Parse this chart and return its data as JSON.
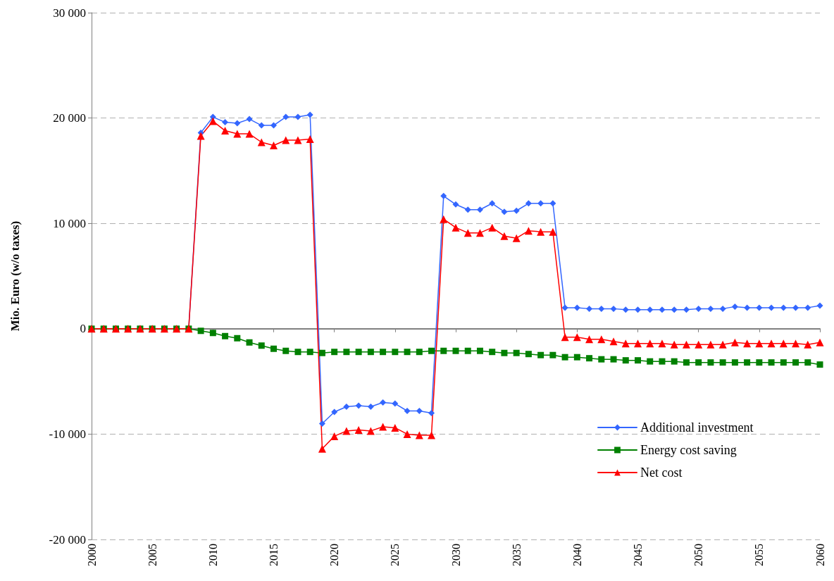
{
  "chart_data": {
    "type": "line",
    "ylabel": "Mio. Euro (w/o taxes)",
    "x": [
      2000,
      2001,
      2002,
      2003,
      2004,
      2005,
      2006,
      2007,
      2008,
      2009,
      2010,
      2011,
      2012,
      2013,
      2014,
      2015,
      2016,
      2017,
      2018,
      2019,
      2020,
      2021,
      2022,
      2023,
      2024,
      2025,
      2026,
      2027,
      2028,
      2029,
      2030,
      2031,
      2032,
      2033,
      2034,
      2035,
      2036,
      2037,
      2038,
      2039,
      2040,
      2041,
      2042,
      2043,
      2044,
      2045,
      2046,
      2047,
      2048,
      2049,
      2050,
      2051,
      2052,
      2053,
      2054,
      2055,
      2056,
      2057,
      2058,
      2059,
      2060
    ],
    "series": [
      {
        "name": "Additional investment",
        "color": "#3366ff",
        "marker": "diamond",
        "values": [
          null,
          null,
          null,
          null,
          null,
          null,
          null,
          null,
          0,
          18600,
          20100,
          19600,
          19500,
          19900,
          19300,
          19300,
          20100,
          20100,
          20300,
          -9000,
          -7900,
          -7400,
          -7300,
          -7400,
          -7000,
          -7100,
          -7800,
          -7800,
          -8000,
          12600,
          11800,
          11300,
          11300,
          11900,
          11100,
          11200,
          11900,
          11900,
          11900,
          2000,
          2000,
          1900,
          1900,
          1900,
          1800,
          1800,
          1800,
          1800,
          1800,
          1800,
          1900,
          1900,
          1900,
          2100,
          2000,
          2000,
          2000,
          2000,
          2000,
          2000,
          2200
        ]
      },
      {
        "name": "Energy cost saving",
        "color": "#008000",
        "marker": "square",
        "values": [
          0,
          0,
          0,
          0,
          0,
          0,
          0,
          0,
          0,
          -200,
          -400,
          -700,
          -900,
          -1300,
          -1600,
          -1900,
          -2100,
          -2200,
          -2200,
          -2300,
          -2200,
          -2200,
          -2200,
          -2200,
          -2200,
          -2200,
          -2200,
          -2200,
          -2100,
          -2100,
          -2100,
          -2100,
          -2100,
          -2200,
          -2300,
          -2300,
          -2400,
          -2500,
          -2500,
          -2700,
          -2700,
          -2800,
          -2900,
          -2900,
          -3000,
          -3000,
          -3100,
          -3100,
          -3100,
          -3200,
          -3200,
          -3200,
          -3200,
          -3200,
          -3200,
          -3200,
          -3200,
          -3200,
          -3200,
          -3200,
          -3400
        ]
      },
      {
        "name": "Net cost",
        "color": "#ff0000",
        "marker": "triangle",
        "values": [
          0,
          0,
          0,
          0,
          0,
          0,
          0,
          0,
          0,
          18300,
          19700,
          18800,
          18500,
          18500,
          17700,
          17400,
          17900,
          17900,
          18000,
          -11400,
          -10200,
          -9700,
          -9600,
          -9700,
          -9300,
          -9400,
          -10000,
          -10100,
          -10100,
          10400,
          9600,
          9100,
          9100,
          9600,
          8800,
          8600,
          9300,
          9200,
          9200,
          -800,
          -800,
          -1000,
          -1000,
          -1200,
          -1400,
          -1400,
          -1400,
          -1400,
          -1500,
          -1500,
          -1500,
          -1500,
          -1500,
          -1300,
          -1400,
          -1400,
          -1400,
          -1400,
          -1400,
          -1500,
          -1300
        ]
      }
    ],
    "xlim": [
      2000,
      2060
    ],
    "xticks": [
      2000,
      2005,
      2010,
      2015,
      2020,
      2025,
      2030,
      2035,
      2040,
      2045,
      2050,
      2055,
      2060
    ],
    "ylim": [
      -20000,
      30000
    ],
    "yticks": [
      {
        "value": -20000,
        "label": "-20 000"
      },
      {
        "value": -10000,
        "label": "-10 000"
      },
      {
        "value": 0,
        "label": "0"
      },
      {
        "value": 10000,
        "label": "10 000"
      },
      {
        "value": 20000,
        "label": "20 000"
      },
      {
        "value": 30000,
        "label": "30 000"
      }
    ],
    "grid": "y",
    "legend": "bottom right",
    "line_style": "solid"
  }
}
